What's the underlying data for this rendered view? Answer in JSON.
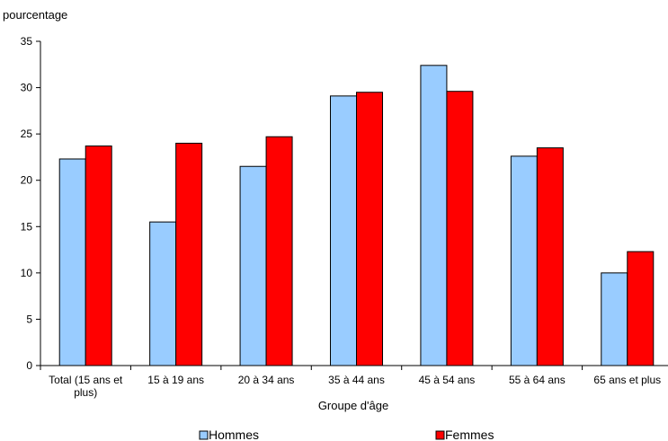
{
  "chart_data": {
    "type": "bar",
    "title": "",
    "ylabel": "pourcentage",
    "xlabel": "Groupe d'âge",
    "ylim": [
      0,
      35
    ],
    "yticks": [
      0,
      5,
      10,
      15,
      20,
      25,
      30,
      35
    ],
    "grid": false,
    "legend_position": "bottom",
    "categories": [
      [
        "Total (15 ans et",
        "plus)"
      ],
      [
        "15 à 19 ans"
      ],
      [
        "20 à 34 ans"
      ],
      [
        "35 à 44 ans"
      ],
      [
        "45 à 54 ans"
      ],
      [
        "55 à 64 ans"
      ],
      [
        "65 ans et plus"
      ]
    ],
    "series": [
      {
        "name": "Hommes",
        "color": "#99ccff",
        "values": [
          22.3,
          15.5,
          21.5,
          29.1,
          32.4,
          22.6,
          10.0
        ]
      },
      {
        "name": "Femmes",
        "color": "#ff0000",
        "values": [
          23.7,
          24.0,
          24.7,
          29.5,
          29.6,
          23.5,
          12.3
        ]
      }
    ]
  }
}
